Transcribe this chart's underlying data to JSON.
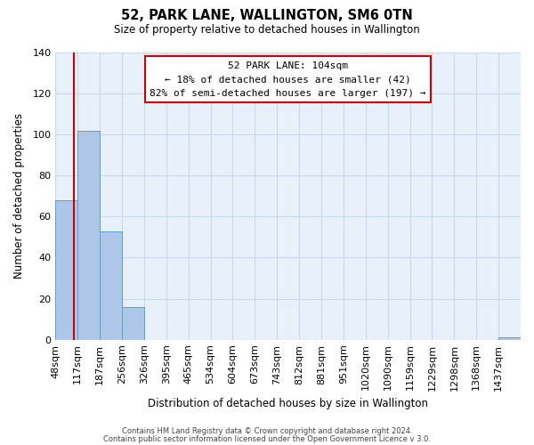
{
  "title": "52, PARK LANE, WALLINGTON, SM6 0TN",
  "subtitle": "Size of property relative to detached houses in Wallington",
  "xlabel": "Distribution of detached houses by size in Wallington",
  "ylabel": "Number of detached properties",
  "bar_labels": [
    "48sqm",
    "117sqm",
    "187sqm",
    "256sqm",
    "326sqm",
    "395sqm",
    "465sqm",
    "534sqm",
    "604sqm",
    "673sqm",
    "743sqm",
    "812sqm",
    "881sqm",
    "951sqm",
    "1020sqm",
    "1090sqm",
    "1159sqm",
    "1229sqm",
    "1298sqm",
    "1368sqm",
    "1437sqm"
  ],
  "bar_values": [
    68,
    102,
    53,
    16,
    0,
    0,
    0,
    0,
    0,
    0,
    0,
    0,
    0,
    0,
    0,
    0,
    0,
    0,
    0,
    0,
    1
  ],
  "bar_color": "#aec6e8",
  "bar_edge_color": "#5a9fd4",
  "property_line_color": "#cc0000",
  "annotation_title": "52 PARK LANE: 104sqm",
  "annotation_line1": "← 18% of detached houses are smaller (42)",
  "annotation_line2": "82% of semi-detached houses are larger (197) →",
  "annotation_box_edge_color": "#cc0000",
  "ylim": [
    0,
    140
  ],
  "yticks": [
    0,
    20,
    40,
    60,
    80,
    100,
    120,
    140
  ],
  "footer1": "Contains HM Land Registry data © Crown copyright and database right 2024.",
  "footer2": "Contains public sector information licensed under the Open Government Licence v 3.0.",
  "plot_bg_color": "#e8f0fa",
  "fig_bg_color": "#ffffff",
  "grid_color": "#c8d8f0"
}
